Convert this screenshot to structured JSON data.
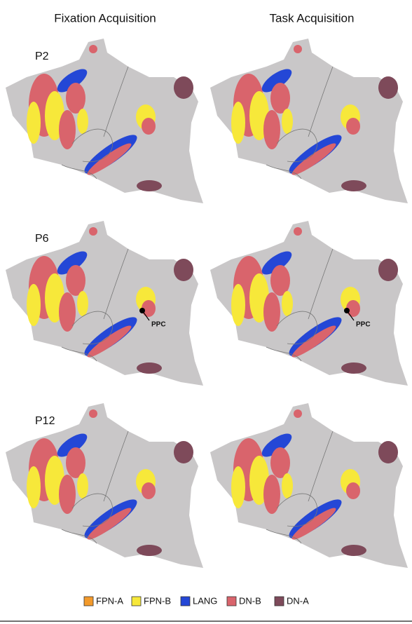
{
  "columns": [
    "Fixation Acquisition",
    "Task Acquisition"
  ],
  "rows": [
    "P2",
    "P6",
    "P12"
  ],
  "annotations": [
    "PPC",
    "PPC"
  ],
  "legend": [
    {
      "label": "FPN-A",
      "color": "#f39a2b"
    },
    {
      "label": "FPN-B",
      "color": "#f7e83a"
    },
    {
      "label": "LANG",
      "color": "#2447d6"
    },
    {
      "label": "DN-B",
      "color": "#d9646c"
    },
    {
      "label": "DN-A",
      "color": "#7e4a5a"
    }
  ]
}
